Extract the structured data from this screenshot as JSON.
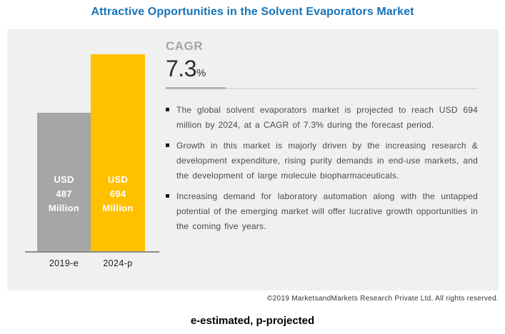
{
  "title": "Attractive Opportunities in the Solvent Evaporators Market",
  "chart_data": {
    "type": "bar",
    "categories": [
      "2019-e",
      "2024-p"
    ],
    "values": [
      487,
      694
    ],
    "unit": "USD Million",
    "ylim": [
      0,
      694
    ],
    "grid": false,
    "bar_colors": [
      "#A6A6A6",
      "#FFC000"
    ],
    "bars": [
      {
        "lines": [
          "USD",
          "487",
          "Million"
        ],
        "category": "2019-e"
      },
      {
        "lines": [
          "USD",
          "694",
          "Million"
        ],
        "category": "2024-p"
      }
    ]
  },
  "cagr": {
    "label": "CAGR",
    "value": "7.3",
    "percent_sign": "%"
  },
  "bullets": [
    "The global solvent evaporators market is projected to reach USD 694 million by 2024, at a CAGR of 7.3% during the forecast period.",
    "Growth in this market is majorly driven by the increasing research & development expenditure, rising purity demands in end-use markets, and the development of large molecule biopharmaceuticals.",
    "Increasing demand for laboratory automation along with the untapped potential of the emerging market will offer lucrative growth opportunities in the coming five years."
  ],
  "footer": {
    "copyright": "©2019 MarketsandMarkets Research Private Ltd. All rights reserved.",
    "footnote": "e-estimated, p-projected"
  },
  "colors": {
    "title_blue": "#1673B9",
    "panel_bg": "#F0F0F0",
    "cagr_gray": "#A6A6A6",
    "bar_2019": "#A6A6A6",
    "bar_2024": "#FFC000"
  }
}
